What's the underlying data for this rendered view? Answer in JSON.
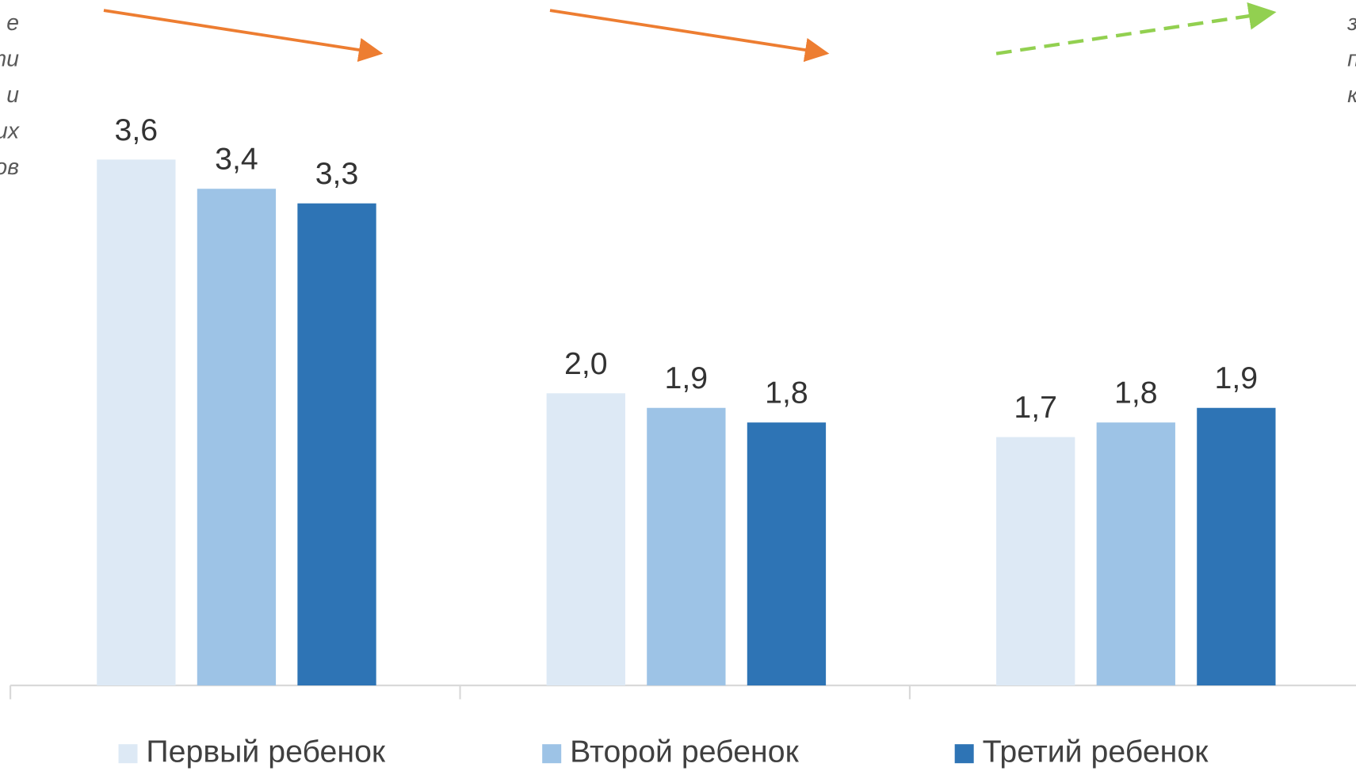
{
  "chart_data": {
    "type": "bar",
    "categories": [
      null,
      null,
      null
    ],
    "series": [
      {
        "name": "Первый ребенок",
        "color": "#dde9f5",
        "values": [
          3.6,
          2.0,
          1.7
        ],
        "value_labels": [
          "3,6",
          "2,0",
          "1,7"
        ]
      },
      {
        "name": "Второй ребенок",
        "color": "#9dc3e6",
        "values": [
          3.4,
          1.9,
          1.8
        ],
        "value_labels": [
          "3,4",
          "1,9",
          "1,8"
        ]
      },
      {
        "name": "Третий ребенок",
        "color": "#2e74b5",
        "values": [
          3.3,
          1.8,
          1.9
        ],
        "value_labels": [
          "3,3",
          "1,8",
          "1,9"
        ]
      }
    ],
    "ylim": [
      0,
      4
    ],
    "legend": "bottom",
    "annotations": {
      "left": [
        "е",
        "ти",
        "и",
        "их",
        "ов"
      ],
      "right": [
        "з",
        "п",
        "к"
      ]
    }
  }
}
